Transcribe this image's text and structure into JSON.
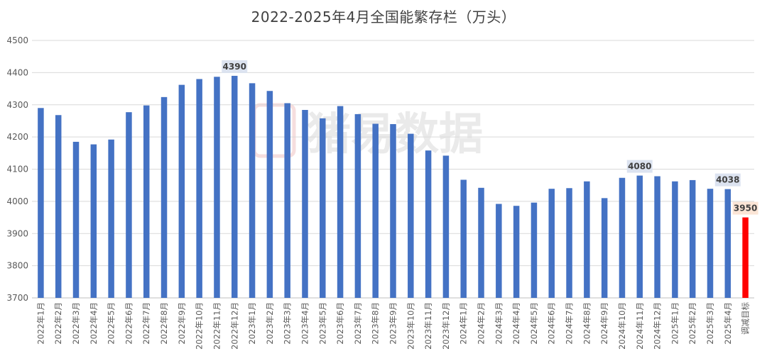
{
  "watermark": "猪易数据",
  "chart_data": {
    "type": "bar",
    "title": "2022-2025年4月全国能繁存栏（万头）",
    "xlabel": "",
    "ylabel": "",
    "ylim": [
      3700,
      4500
    ],
    "yticks": [
      3700,
      3800,
      3900,
      4000,
      4100,
      4200,
      4300,
      4400,
      4500
    ],
    "grid": true,
    "categories": [
      "2022年1月",
      "2022年2月",
      "2022年3月",
      "2022年4月",
      "2022年5月",
      "2022年6月",
      "2022年7月",
      "2022年8月",
      "2022年9月",
      "2022年10月",
      "2022年11月",
      "2022年12月",
      "2023年1月",
      "2023年2月",
      "2023年3月",
      "2023年4月",
      "2023年5月",
      "2023年6月",
      "2023年7月",
      "2023年8月",
      "2023年9月",
      "2023年10月",
      "2023年11月",
      "2023年12月",
      "2024年1月",
      "2024年2月",
      "2024年3月",
      "2024年4月",
      "2024年5月",
      "2024年6月",
      "2024年7月",
      "2024年8月",
      "2024年9月",
      "2024年10月",
      "2024年11月",
      "2024年12月",
      "2025年1月",
      "2025年2月",
      "2025年3月",
      "2025年4月",
      "调减目标"
    ],
    "values": [
      4290,
      4268,
      4185,
      4177,
      4192,
      4277,
      4298,
      4324,
      4362,
      4380,
      4387,
      4390,
      4367,
      4343,
      4305,
      4284,
      4258,
      4296,
      4271,
      4241,
      4240,
      4210,
      4158,
      4142,
      4067,
      4042,
      3992,
      3986,
      3996,
      4039,
      4041,
      4062,
      4010,
      4073,
      4080,
      4078,
      4062,
      4066,
      4039,
      4038,
      3950
    ],
    "bar_color": "#4472C4",
    "highlight_color": "#FF0000",
    "highlight_index": 40,
    "data_labels": [
      {
        "index": 11,
        "text": "4390",
        "bg": "#DCE3F0"
      },
      {
        "index": 34,
        "text": "4080",
        "bg": "#DCE3F0"
      },
      {
        "index": 39,
        "text": "4038",
        "bg": "#DCE3F0"
      },
      {
        "index": 40,
        "text": "3950",
        "bg": "#FBE5D6"
      }
    ]
  }
}
